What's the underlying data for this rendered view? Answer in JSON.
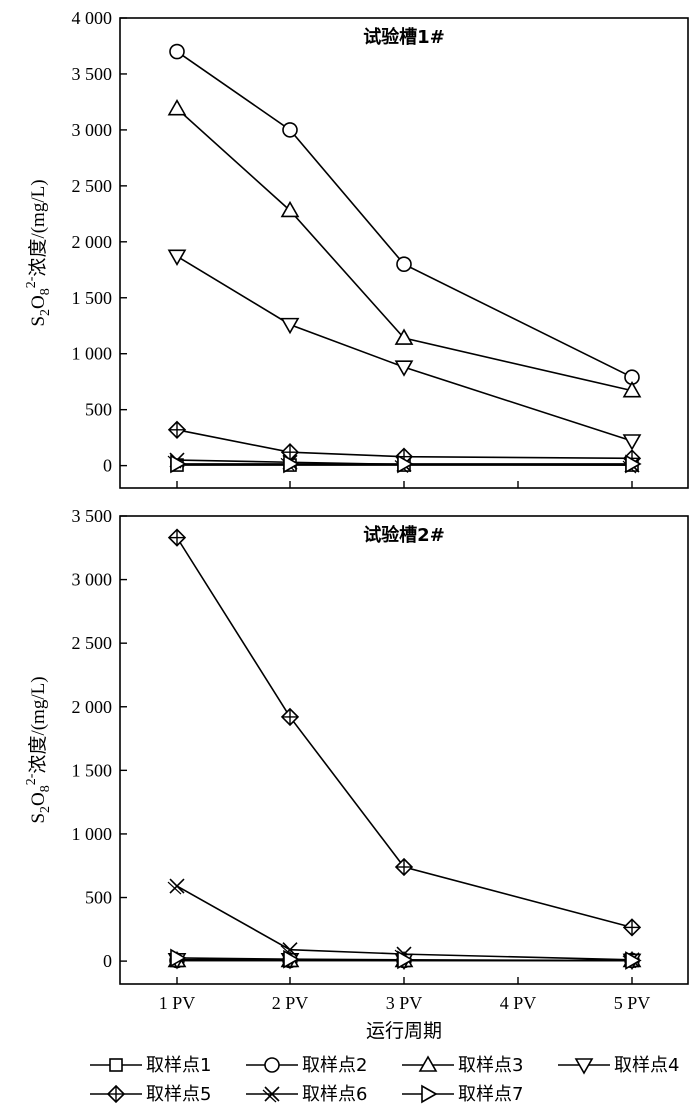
{
  "chart_data": [
    {
      "type": "line",
      "title": "试验槽1#",
      "ylabel": "S2O82-浓度/(mg/L)",
      "xlabel": "",
      "categories": [
        "1 PV",
        "2 PV",
        "3 PV",
        "4 PV",
        "5 PV"
      ],
      "ylim": [
        -200,
        4000
      ],
      "yticks": [
        0,
        500,
        1000,
        1500,
        2000,
        2500,
        3000,
        3500,
        4000
      ],
      "ytick_labels": [
        "0",
        "500",
        "1 000",
        "1 500",
        "2 000",
        "2 500",
        "3 000",
        "3 500",
        "4 000"
      ],
      "series": [
        {
          "name": "取样点1",
          "marker": "square",
          "points": [
            {
              "x": "1 PV",
              "y": 5
            },
            {
              "x": "2 PV",
              "y": 5
            },
            {
              "x": "3 PV",
              "y": 5
            },
            {
              "x": "5 PV",
              "y": 5
            }
          ]
        },
        {
          "name": "取样点2",
          "marker": "circle",
          "points": [
            {
              "x": "1 PV",
              "y": 3700
            },
            {
              "x": "2 PV",
              "y": 3000
            },
            {
              "x": "3 PV",
              "y": 1800
            },
            {
              "x": "5 PV",
              "y": 790
            }
          ]
        },
        {
          "name": "取样点3",
          "marker": "triangle-up",
          "points": [
            {
              "x": "1 PV",
              "y": 3190
            },
            {
              "x": "2 PV",
              "y": 2280
            },
            {
              "x": "3 PV",
              "y": 1140
            },
            {
              "x": "5 PV",
              "y": 670
            }
          ]
        },
        {
          "name": "取样点4",
          "marker": "triangle-down",
          "points": [
            {
              "x": "1 PV",
              "y": 1870
            },
            {
              "x": "2 PV",
              "y": 1260
            },
            {
              "x": "3 PV",
              "y": 880
            },
            {
              "x": "5 PV",
              "y": 220
            }
          ]
        },
        {
          "name": "取样点5",
          "marker": "diamond-cross",
          "points": [
            {
              "x": "1 PV",
              "y": 320
            },
            {
              "x": "2 PV",
              "y": 120
            },
            {
              "x": "3 PV",
              "y": 80
            },
            {
              "x": "5 PV",
              "y": 65
            }
          ]
        },
        {
          "name": "取样点6",
          "marker": "x-cross",
          "points": [
            {
              "x": "1 PV",
              "y": 50
            },
            {
              "x": "2 PV",
              "y": 30
            },
            {
              "x": "3 PV",
              "y": 10
            },
            {
              "x": "5 PV",
              "y": 5
            }
          ]
        },
        {
          "name": "取样点7",
          "marker": "triangle-right",
          "points": [
            {
              "x": "1 PV",
              "y": 15
            },
            {
              "x": "2 PV",
              "y": 15
            },
            {
              "x": "3 PV",
              "y": 15
            },
            {
              "x": "5 PV",
              "y": 15
            }
          ]
        }
      ]
    },
    {
      "type": "line",
      "title": "试验槽2#",
      "ylabel": "S2O82-浓度/(mg/L)",
      "xlabel": "运行周期",
      "categories": [
        "1 PV",
        "2 PV",
        "3 PV",
        "4 PV",
        "5 PV"
      ],
      "ylim": [
        -180,
        3500
      ],
      "yticks": [
        0,
        500,
        1000,
        1500,
        2000,
        2500,
        3000,
        3500
      ],
      "ytick_labels": [
        "0",
        "500",
        "1 000",
        "1 500",
        "2 000",
        "2 500",
        "3 000",
        "3 500"
      ],
      "series": [
        {
          "name": "取样点1",
          "marker": "square",
          "points": [
            {
              "x": "1 PV",
              "y": 5
            },
            {
              "x": "2 PV",
              "y": 5
            },
            {
              "x": "3 PV",
              "y": 5
            },
            {
              "x": "5 PV",
              "y": 5
            }
          ]
        },
        {
          "name": "取样点2",
          "marker": "circle",
          "points": [
            {
              "x": "1 PV",
              "y": 5
            },
            {
              "x": "2 PV",
              "y": 5
            },
            {
              "x": "3 PV",
              "y": 5
            },
            {
              "x": "5 PV",
              "y": 5
            }
          ]
        },
        {
          "name": "取样点3",
          "marker": "triangle-up",
          "points": [
            {
              "x": "1 PV",
              "y": 5
            },
            {
              "x": "2 PV",
              "y": 5
            },
            {
              "x": "3 PV",
              "y": 5
            },
            {
              "x": "5 PV",
              "y": 5
            }
          ]
        },
        {
          "name": "取样点4",
          "marker": "triangle-down",
          "points": [
            {
              "x": "1 PV",
              "y": 10
            },
            {
              "x": "2 PV",
              "y": 10
            },
            {
              "x": "3 PV",
              "y": 5
            },
            {
              "x": "5 PV",
              "y": 5
            }
          ]
        },
        {
          "name": "取样点5",
          "marker": "diamond-cross",
          "points": [
            {
              "x": "1 PV",
              "y": 3330
            },
            {
              "x": "2 PV",
              "y": 1920
            },
            {
              "x": "3 PV",
              "y": 740
            },
            {
              "x": "5 PV",
              "y": 265
            }
          ]
        },
        {
          "name": "取样点6",
          "marker": "x-cross",
          "points": [
            {
              "x": "1 PV",
              "y": 590
            },
            {
              "x": "2 PV",
              "y": 90
            },
            {
              "x": "3 PV",
              "y": 55
            },
            {
              "x": "5 PV",
              "y": 10
            }
          ]
        },
        {
          "name": "取样点7",
          "marker": "triangle-right",
          "points": [
            {
              "x": "1 PV",
              "y": 25
            },
            {
              "x": "2 PV",
              "y": 15
            },
            {
              "x": "3 PV",
              "y": 10
            },
            {
              "x": "5 PV",
              "y": 5
            }
          ]
        }
      ]
    }
  ]
}
